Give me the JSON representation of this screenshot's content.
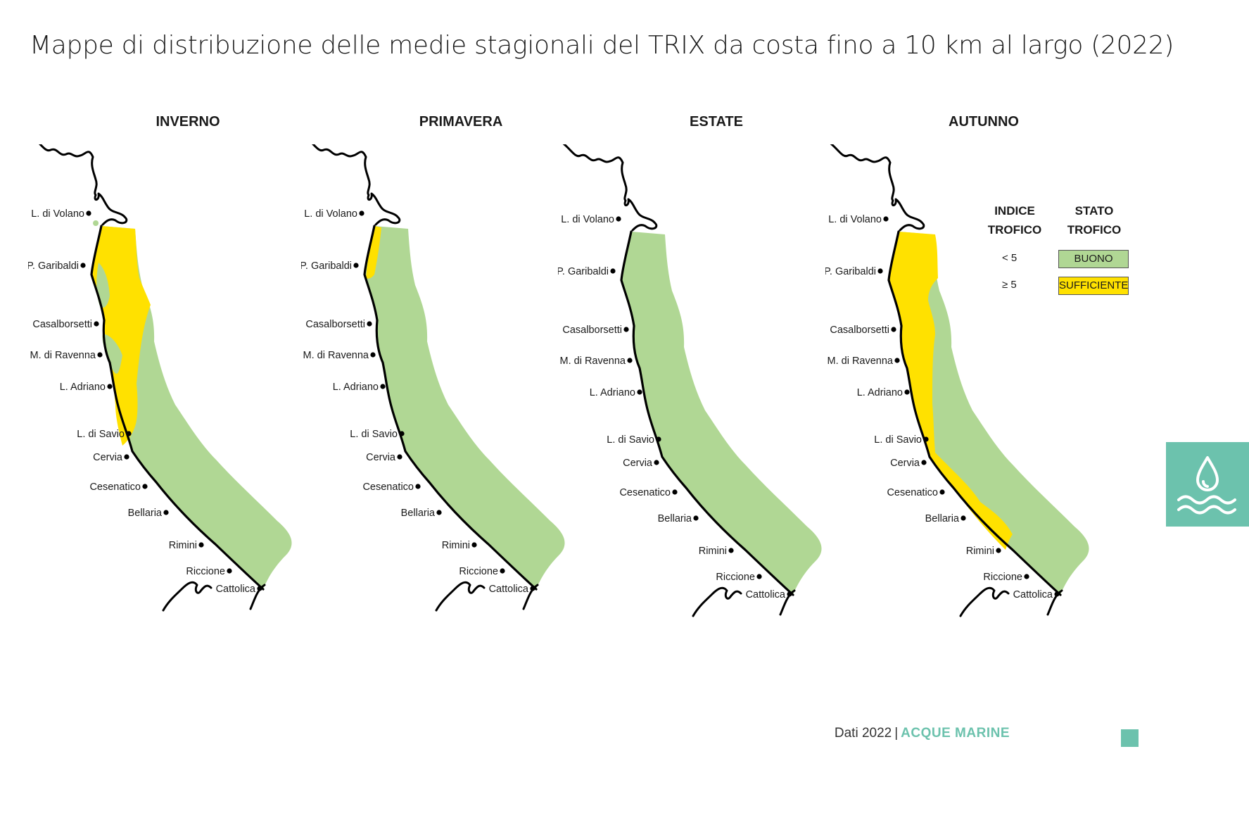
{
  "title": "Mappe di distribuzione delle medie stagionali del TRIX da costa fino a 10 km al largo (2022)",
  "seasons": [
    {
      "name": "INVERNO"
    },
    {
      "name": "PRIMAVERA"
    },
    {
      "name": "ESTATE"
    },
    {
      "name": "AUTUNNO"
    }
  ],
  "cities": [
    "L. di Volano",
    "P. Garibaldi",
    "Casalborsetti",
    "M. di Ravenna",
    "L. Adriano",
    "L. di Savio",
    "Cervia",
    "Cesenatico",
    "Bellaria",
    "Rimini",
    "Riccione",
    "Cattolica"
  ],
  "legend": {
    "col1_header": "INDICE TROFICO",
    "col2_header": "STATO TROFICO",
    "rows": [
      {
        "index": "< 5",
        "state": "BUONO",
        "color": "#b0d794"
      },
      {
        "index": "≥ 5",
        "state": "SUFFICIENTE",
        "color": "#ffe100"
      }
    ]
  },
  "colors": {
    "buono": "#b0d794",
    "sufficiente": "#ffe100",
    "accent": "#6cc2ad"
  },
  "icons": {
    "side_tab": "water-drop-waves-icon"
  },
  "footer": {
    "data": "Dati 2022",
    "separator": "|",
    "brand": "ACQUE MARINE"
  }
}
